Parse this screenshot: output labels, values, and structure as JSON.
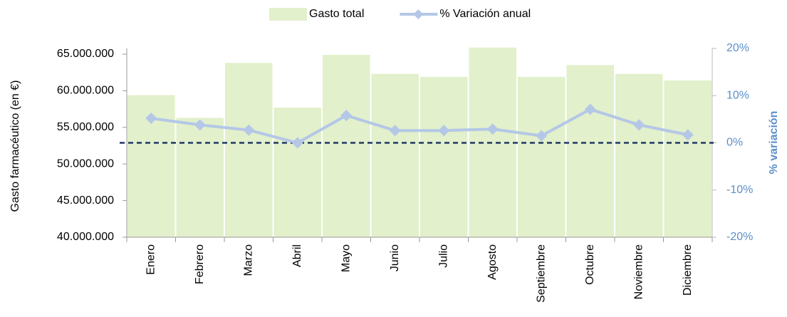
{
  "chart_data": {
    "type": "bar_line",
    "categories": [
      "Enero",
      "Febrero",
      "Marzo",
      "Abril",
      "Mayo",
      "Junio",
      "Julio",
      "Agosto",
      "Septiembre",
      "Octubre",
      "Noviembre",
      "Diciembre"
    ],
    "series": [
      {
        "name": "Gasto total",
        "type": "bar",
        "color": "#e2f0cb",
        "values": [
          59400000,
          56300000,
          63800000,
          57700000,
          64900000,
          62300000,
          61900000,
          65900000,
          61900000,
          63500000,
          62300000,
          61400000
        ]
      },
      {
        "name": "% Variación anual",
        "type": "line",
        "axis": "y2",
        "color": "#b4c7e7",
        "values": [
          5.2,
          3.8,
          2.7,
          0,
          5.8,
          2.6,
          2.6,
          2.9,
          1.5,
          7.1,
          3.8,
          1.7
        ]
      }
    ],
    "y_label": "Gasto farmacéutico (en €)",
    "y2_label": "% variación",
    "ylim": [
      40000000,
      65000000
    ],
    "yticks": [
      {
        "value": 40000000,
        "label": "40.000.000"
      },
      {
        "value": 45000000,
        "label": "45.000.000"
      },
      {
        "value": 50000000,
        "label": "50.000.000"
      },
      {
        "value": 55000000,
        "label": "55.000.000"
      },
      {
        "value": 60000000,
        "label": "60.000.000"
      },
      {
        "value": 65000000,
        "label": "65.000.000"
      }
    ],
    "y2lim": [
      -20,
      20
    ],
    "y2ticks": [
      {
        "value": -20,
        "label": "-20%"
      },
      {
        "value": -10,
        "label": "-10%"
      },
      {
        "value": 0,
        "label": "0%"
      },
      {
        "value": 10,
        "label": "10%"
      },
      {
        "value": 20,
        "label": "20%"
      }
    ],
    "reference_line": {
      "axis": "y2",
      "value": 0,
      "color": "#1f3864"
    },
    "legend": "top"
  }
}
